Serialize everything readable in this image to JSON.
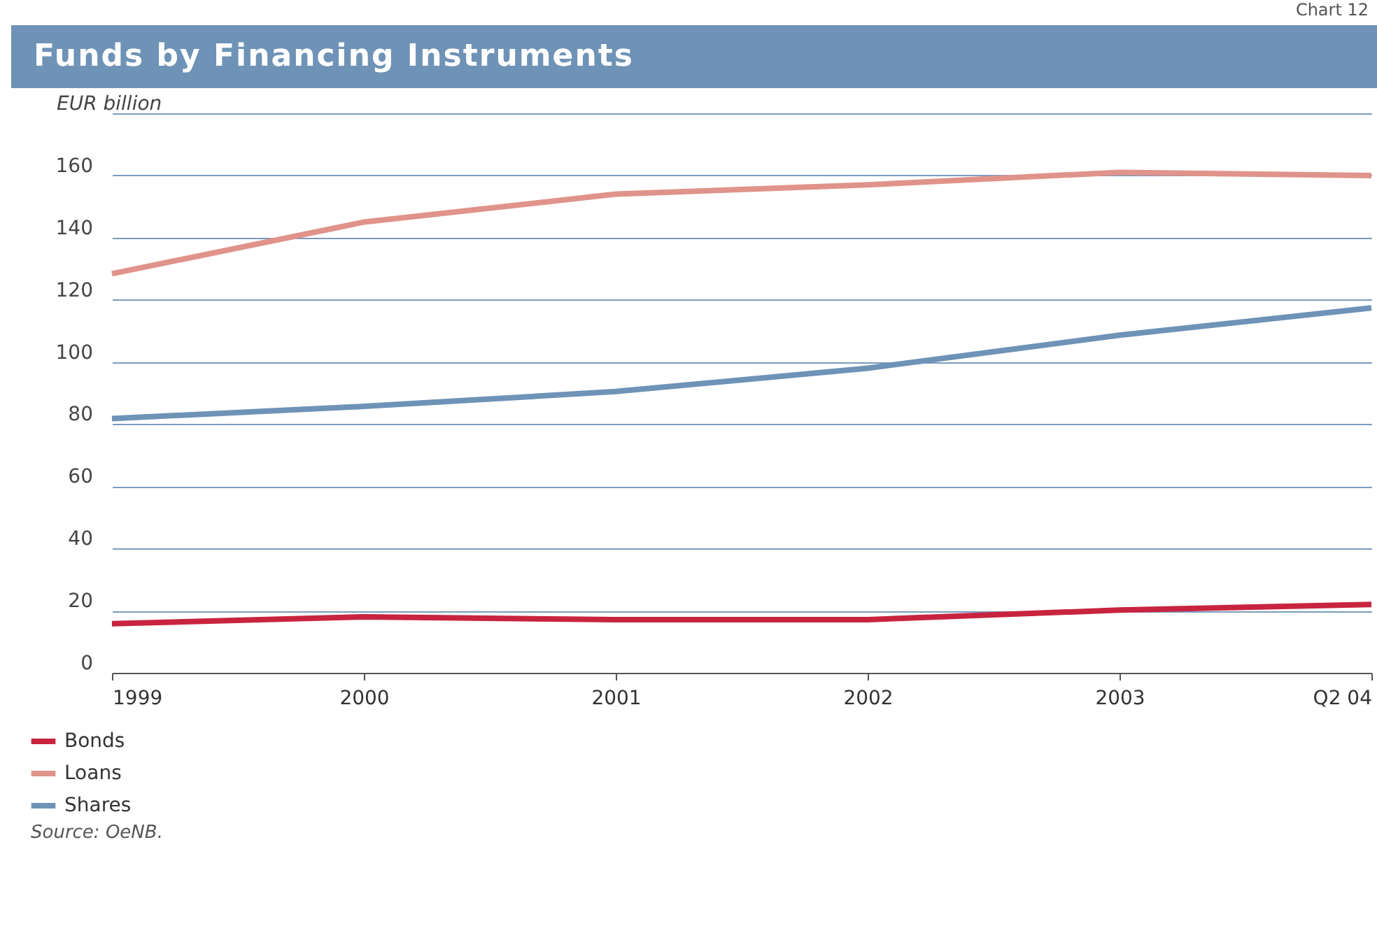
{
  "chart_data": {
    "type": "line",
    "title": "Funds by Financing Instruments",
    "ylabel": "EUR billion",
    "categories": [
      "1999",
      "2000",
      "2001",
      "2002",
      "2003",
      "Q2 04"
    ],
    "series": [
      {
        "name": "Bonds",
        "color": "#c8243f",
        "values": [
          15.8,
          18,
          17.1,
          17.1,
          20.2,
          22
        ]
      },
      {
        "name": "Loans",
        "color": "#e0938a",
        "values": [
          128.4,
          145,
          154,
          157,
          161,
          160
        ]
      },
      {
        "name": "Shares",
        "color": "#6e93b6",
        "values": [
          81.8,
          85.7,
          90.5,
          98,
          108.6,
          117.4
        ]
      }
    ],
    "ylim": [
      0,
      180
    ],
    "yticks": [
      0,
      20,
      40,
      60,
      80,
      100,
      120,
      140,
      160,
      {
        "value": 180,
        "label": null
      }
    ],
    "grid": "y",
    "legend": "bottom left",
    "marker": "none",
    "line_style": "solid",
    "annotations": [
      "Chart 12",
      "Source: OeNB."
    ]
  }
}
